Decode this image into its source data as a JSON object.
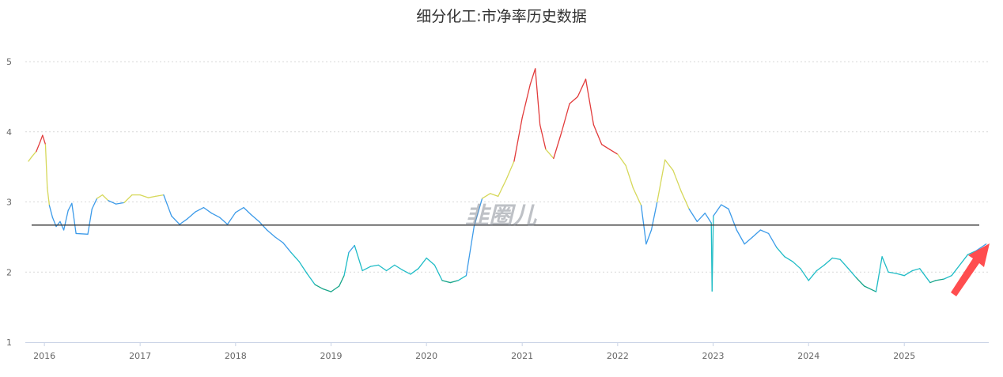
{
  "chart_data": {
    "type": "line",
    "title": "细分化工:市净率历史数据",
    "xlabel": "",
    "ylabel": "",
    "ylim": [
      1,
      5
    ],
    "yticks": [
      1,
      2,
      3,
      4,
      5
    ],
    "xlim": [
      "2015-10-20",
      "2025-11-20"
    ],
    "xticks": [
      "2016",
      "2017",
      "2018",
      "2019",
      "2020",
      "2021",
      "2022",
      "2023",
      "2024",
      "2025"
    ],
    "grid": true,
    "reference_line": 2.67,
    "watermark": "韭圈儿",
    "color_bands": [
      {
        "min": 0.0,
        "max": 1.9,
        "color": "#17a589"
      },
      {
        "min": 1.9,
        "max": 2.3,
        "color": "#1fbcc6"
      },
      {
        "min": 2.3,
        "max": 3.0,
        "color": "#3d9be9"
      },
      {
        "min": 3.0,
        "max": 3.7,
        "color": "#d6d85a"
      },
      {
        "min": 3.7,
        "max": 9.0,
        "color": "#e23b3b"
      }
    ],
    "series": [
      {
        "values": [
          [
            "2015-11-01",
            3.58
          ],
          [
            "2015-11-15",
            3.65
          ],
          [
            "2015-12-01",
            3.72
          ],
          [
            "2015-12-15",
            3.85
          ],
          [
            "2015-12-25",
            3.95
          ],
          [
            "2016-01-05",
            3.82
          ],
          [
            "2016-01-12",
            3.2
          ],
          [
            "2016-01-20",
            2.95
          ],
          [
            "2016-02-01",
            2.78
          ],
          [
            "2016-02-15",
            2.65
          ],
          [
            "2016-03-01",
            2.72
          ],
          [
            "2016-03-15",
            2.6
          ],
          [
            "2016-04-01",
            2.88
          ],
          [
            "2016-04-15",
            2.98
          ],
          [
            "2016-05-01",
            2.55
          ],
          [
            "2016-06-15",
            2.54
          ],
          [
            "2016-07-01",
            2.9
          ],
          [
            "2016-07-20",
            3.05
          ],
          [
            "2016-08-10",
            3.1
          ],
          [
            "2016-09-01",
            3.02
          ],
          [
            "2016-10-01",
            2.97
          ],
          [
            "2016-11-01",
            2.99
          ],
          [
            "2016-12-01",
            3.1
          ],
          [
            "2017-01-01",
            3.1
          ],
          [
            "2017-02-01",
            3.06
          ],
          [
            "2017-03-01",
            3.08
          ],
          [
            "2017-04-01",
            3.1
          ],
          [
            "2017-05-01",
            2.8
          ],
          [
            "2017-06-01",
            2.68
          ],
          [
            "2017-07-01",
            2.76
          ],
          [
            "2017-08-01",
            2.86
          ],
          [
            "2017-09-01",
            2.92
          ],
          [
            "2017-10-01",
            2.84
          ],
          [
            "2017-11-01",
            2.78
          ],
          [
            "2017-12-01",
            2.68
          ],
          [
            "2018-01-01",
            2.85
          ],
          [
            "2018-02-01",
            2.92
          ],
          [
            "2018-03-01",
            2.82
          ],
          [
            "2018-04-01",
            2.72
          ],
          [
            "2018-05-01",
            2.6
          ],
          [
            "2018-06-01",
            2.5
          ],
          [
            "2018-07-01",
            2.42
          ],
          [
            "2018-08-01",
            2.28
          ],
          [
            "2018-09-01",
            2.15
          ],
          [
            "2018-10-01",
            1.98
          ],
          [
            "2018-11-01",
            1.82
          ],
          [
            "2018-12-01",
            1.76
          ],
          [
            "2019-01-01",
            1.72
          ],
          [
            "2019-02-01",
            1.8
          ],
          [
            "2019-02-20",
            1.95
          ],
          [
            "2019-03-10",
            2.28
          ],
          [
            "2019-04-01",
            2.38
          ],
          [
            "2019-05-01",
            2.02
          ],
          [
            "2019-06-01",
            2.08
          ],
          [
            "2019-07-01",
            2.1
          ],
          [
            "2019-08-01",
            2.02
          ],
          [
            "2019-09-01",
            2.1
          ],
          [
            "2019-10-01",
            2.03
          ],
          [
            "2019-11-01",
            1.97
          ],
          [
            "2019-12-01",
            2.05
          ],
          [
            "2020-01-01",
            2.2
          ],
          [
            "2020-02-01",
            2.1
          ],
          [
            "2020-03-01",
            1.88
          ],
          [
            "2020-04-01",
            1.85
          ],
          [
            "2020-05-01",
            1.88
          ],
          [
            "2020-06-01",
            1.95
          ],
          [
            "2020-07-01",
            2.65
          ],
          [
            "2020-08-01",
            3.05
          ],
          [
            "2020-09-01",
            3.12
          ],
          [
            "2020-10-01",
            3.08
          ],
          [
            "2020-11-01",
            3.32
          ],
          [
            "2020-12-01",
            3.58
          ],
          [
            "2021-01-01",
            4.2
          ],
          [
            "2021-02-01",
            4.68
          ],
          [
            "2021-02-20",
            4.9
          ],
          [
            "2021-03-10",
            4.1
          ],
          [
            "2021-04-01",
            3.75
          ],
          [
            "2021-05-01",
            3.62
          ],
          [
            "2021-06-01",
            4.0
          ],
          [
            "2021-07-01",
            4.4
          ],
          [
            "2021-08-01",
            4.5
          ],
          [
            "2021-09-01",
            4.75
          ],
          [
            "2021-10-01",
            4.1
          ],
          [
            "2021-11-01",
            3.82
          ],
          [
            "2021-12-01",
            3.75
          ],
          [
            "2022-01-01",
            3.68
          ],
          [
            "2022-02-01",
            3.52
          ],
          [
            "2022-03-01",
            3.2
          ],
          [
            "2022-04-01",
            2.95
          ],
          [
            "2022-04-20",
            2.4
          ],
          [
            "2022-05-10",
            2.6
          ],
          [
            "2022-06-01",
            3.0
          ],
          [
            "2022-07-01",
            3.6
          ],
          [
            "2022-08-01",
            3.45
          ],
          [
            "2022-09-01",
            3.15
          ],
          [
            "2022-10-01",
            2.9
          ],
          [
            "2022-11-01",
            2.72
          ],
          [
            "2022-12-01",
            2.84
          ],
          [
            "2022-12-25",
            2.7
          ],
          [
            "2022-12-28",
            1.73
          ],
          [
            "2023-01-02",
            2.8
          ],
          [
            "2023-02-01",
            2.96
          ],
          [
            "2023-03-01",
            2.9
          ],
          [
            "2023-04-01",
            2.6
          ],
          [
            "2023-05-01",
            2.4
          ],
          [
            "2023-06-01",
            2.5
          ],
          [
            "2023-07-01",
            2.6
          ],
          [
            "2023-08-01",
            2.55
          ],
          [
            "2023-09-01",
            2.35
          ],
          [
            "2023-10-01",
            2.22
          ],
          [
            "2023-11-01",
            2.15
          ],
          [
            "2023-12-01",
            2.05
          ],
          [
            "2024-01-01",
            1.88
          ],
          [
            "2024-02-01",
            2.02
          ],
          [
            "2024-03-01",
            2.1
          ],
          [
            "2024-04-01",
            2.2
          ],
          [
            "2024-05-01",
            2.18
          ],
          [
            "2024-06-01",
            2.05
          ],
          [
            "2024-07-01",
            1.92
          ],
          [
            "2024-08-01",
            1.8
          ],
          [
            "2024-09-15",
            1.72
          ],
          [
            "2024-10-08",
            2.22
          ],
          [
            "2024-11-01",
            2.0
          ],
          [
            "2024-12-01",
            1.98
          ],
          [
            "2025-01-01",
            1.95
          ],
          [
            "2025-02-01",
            2.02
          ],
          [
            "2025-03-01",
            2.05
          ],
          [
            "2025-04-10",
            1.85
          ],
          [
            "2025-05-01",
            1.88
          ],
          [
            "2025-06-01",
            1.9
          ],
          [
            "2025-07-01",
            1.95
          ],
          [
            "2025-08-01",
            2.1
          ],
          [
            "2025-09-01",
            2.25
          ],
          [
            "2025-10-01",
            2.3
          ],
          [
            "2025-11-10",
            2.4
          ]
        ]
      }
    ]
  }
}
